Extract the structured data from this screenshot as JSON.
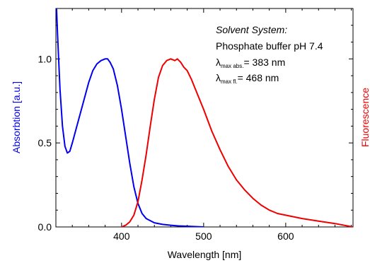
{
  "chart_data": {
    "type": "line",
    "xlabel": "Wavelength [nm]",
    "ylabel_left": "Absorbtion [a.u.]",
    "ylabel_right": "Fluorescence",
    "xlim": [
      320,
      682
    ],
    "ylim": [
      0,
      1.3
    ],
    "x_ticks": [
      400,
      500,
      600
    ],
    "y_ticks": [
      0.0,
      0.5,
      1.0
    ],
    "y_tick_labels": [
      "0.0",
      "0.5",
      "1.0"
    ],
    "grid": false,
    "colors": {
      "absorption": "#0000ee",
      "fluorescence": "#ee0000"
    },
    "series": [
      {
        "name": "Absorbtion",
        "axis": "left",
        "x": [
          320,
          322,
          325,
          328,
          331,
          334,
          337,
          340,
          345,
          350,
          355,
          360,
          365,
          370,
          375,
          380,
          383,
          386,
          390,
          395,
          400,
          405,
          410,
          415,
          420,
          425,
          430,
          440,
          450,
          460,
          470,
          480,
          490,
          500
        ],
        "y": [
          1.4,
          1.15,
          0.82,
          0.6,
          0.48,
          0.44,
          0.45,
          0.5,
          0.59,
          0.68,
          0.77,
          0.86,
          0.93,
          0.97,
          0.99,
          1.0,
          1.0,
          0.98,
          0.94,
          0.84,
          0.7,
          0.54,
          0.38,
          0.24,
          0.14,
          0.08,
          0.05,
          0.025,
          0.015,
          0.01,
          0.006,
          0.004,
          0.002,
          0.0
        ]
      },
      {
        "name": "Fluorescence",
        "axis": "right",
        "x": [
          400,
          405,
          410,
          415,
          420,
          425,
          430,
          435,
          440,
          445,
          450,
          455,
          460,
          465,
          468,
          472,
          476,
          480,
          485,
          490,
          495,
          500,
          510,
          520,
          530,
          540,
          550,
          560,
          570,
          580,
          590,
          600,
          620,
          640,
          660,
          682
        ],
        "y": [
          0.0,
          0.01,
          0.03,
          0.07,
          0.15,
          0.28,
          0.43,
          0.6,
          0.76,
          0.89,
          0.96,
          0.99,
          1.0,
          0.99,
          1.0,
          0.98,
          0.95,
          0.93,
          0.88,
          0.82,
          0.76,
          0.7,
          0.57,
          0.46,
          0.36,
          0.28,
          0.22,
          0.17,
          0.13,
          0.1,
          0.08,
          0.07,
          0.05,
          0.035,
          0.02,
          0.0
        ]
      }
    ],
    "annotation": {
      "title": "Solvent System:",
      "line1": "Phosphate buffer pH 7.4",
      "abs_symbol": "λ",
      "abs_sub": "max abs.",
      "abs_value": "= 383 nm",
      "fl_symbol": "λ",
      "fl_sub": "max fl.",
      "fl_value": "= 468 nm"
    }
  }
}
